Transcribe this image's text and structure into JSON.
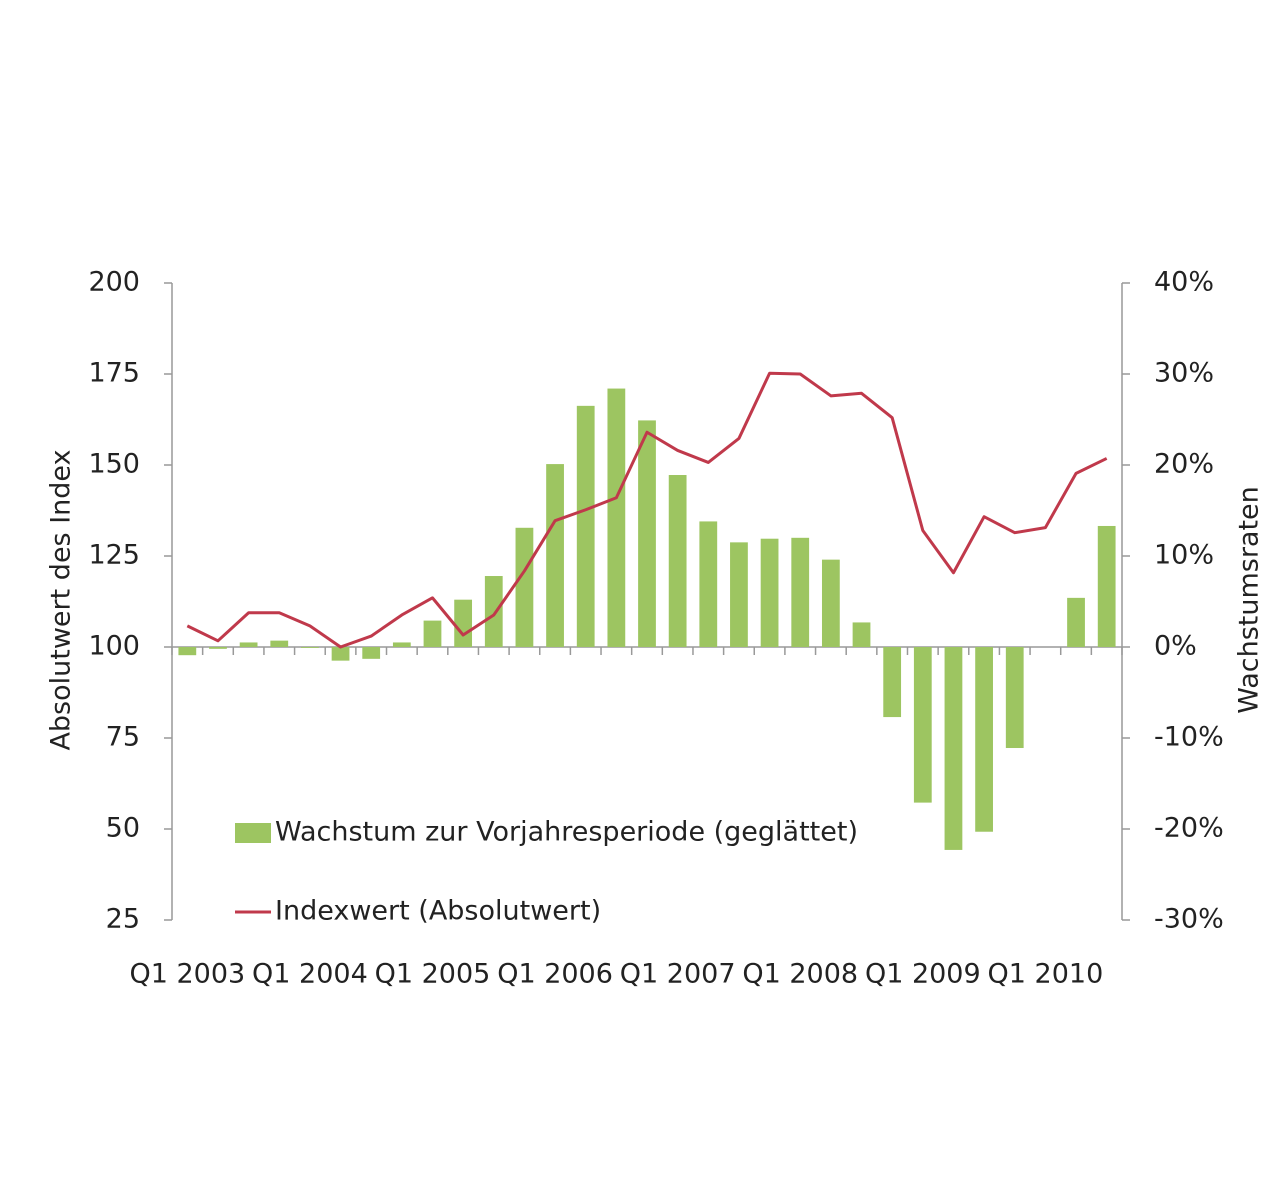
{
  "chart_data": {
    "type": "bar_line",
    "categories": [
      "Q1 2003",
      null,
      null,
      null,
      "Q1 2004",
      null,
      null,
      null,
      "Q1 2005",
      null,
      null,
      null,
      "Q1 2006",
      null,
      null,
      null,
      "Q1 2007",
      null,
      null,
      null,
      "Q1 2008",
      null,
      null,
      null,
      "Q1 2009",
      null,
      null,
      null,
      "Q1 2010",
      null,
      null
    ],
    "series": [
      {
        "name": "Wachstum zur Vorjahresperiode (geglättet)",
        "type": "bar",
        "axis": "y2",
        "color": "#9dc561",
        "values": [
          -0.9,
          -0.2,
          0.5,
          0.7,
          -0.1,
          -1.5,
          -1.3,
          0.5,
          2.9,
          5.2,
          7.8,
          13.1,
          20.1,
          26.5,
          28.4,
          24.9,
          18.9,
          13.8,
          11.5,
          11.9,
          12,
          9.6,
          2.7,
          -7.7,
          -17.1,
          -22.3,
          -20.3,
          -11.1,
          0,
          5.4,
          13.3
        ]
      },
      {
        "name": "Indexwert (Absolutwert)",
        "type": "line",
        "axis": "y",
        "color": "#c0394b",
        "values": [
          105.8,
          101.7,
          109.4,
          109.4,
          105.8,
          100,
          103,
          108.8,
          113.5,
          103.3,
          108.8,
          120.9,
          134.7,
          137.7,
          141,
          159,
          154,
          150.7,
          157.3,
          175.2,
          175,
          169,
          169.7,
          163,
          132,
          120.4,
          135.8,
          131.4,
          132.8,
          147.7,
          151.8
        ]
      }
    ],
    "y_label": "Absolutwert des Index",
    "y2_label": "Wachstumsraten",
    "ylim": [
      25,
      200
    ],
    "yticks": [
      25,
      50,
      75,
      100,
      125,
      150,
      175,
      200
    ],
    "y2lim": [
      -30,
      40
    ],
    "y2ticks": [
      {
        "value": -30,
        "label": "-30%"
      },
      {
        "value": -20,
        "label": "-20%"
      },
      {
        "value": -10,
        "label": "-10%"
      },
      {
        "value": 0,
        "label": "0%"
      },
      {
        "value": 10,
        "label": "10%"
      },
      {
        "value": 20,
        "label": "20%"
      },
      {
        "value": 30,
        "label": "30%"
      },
      {
        "value": 40,
        "label": "40%"
      }
    ],
    "legend": "lower left"
  }
}
